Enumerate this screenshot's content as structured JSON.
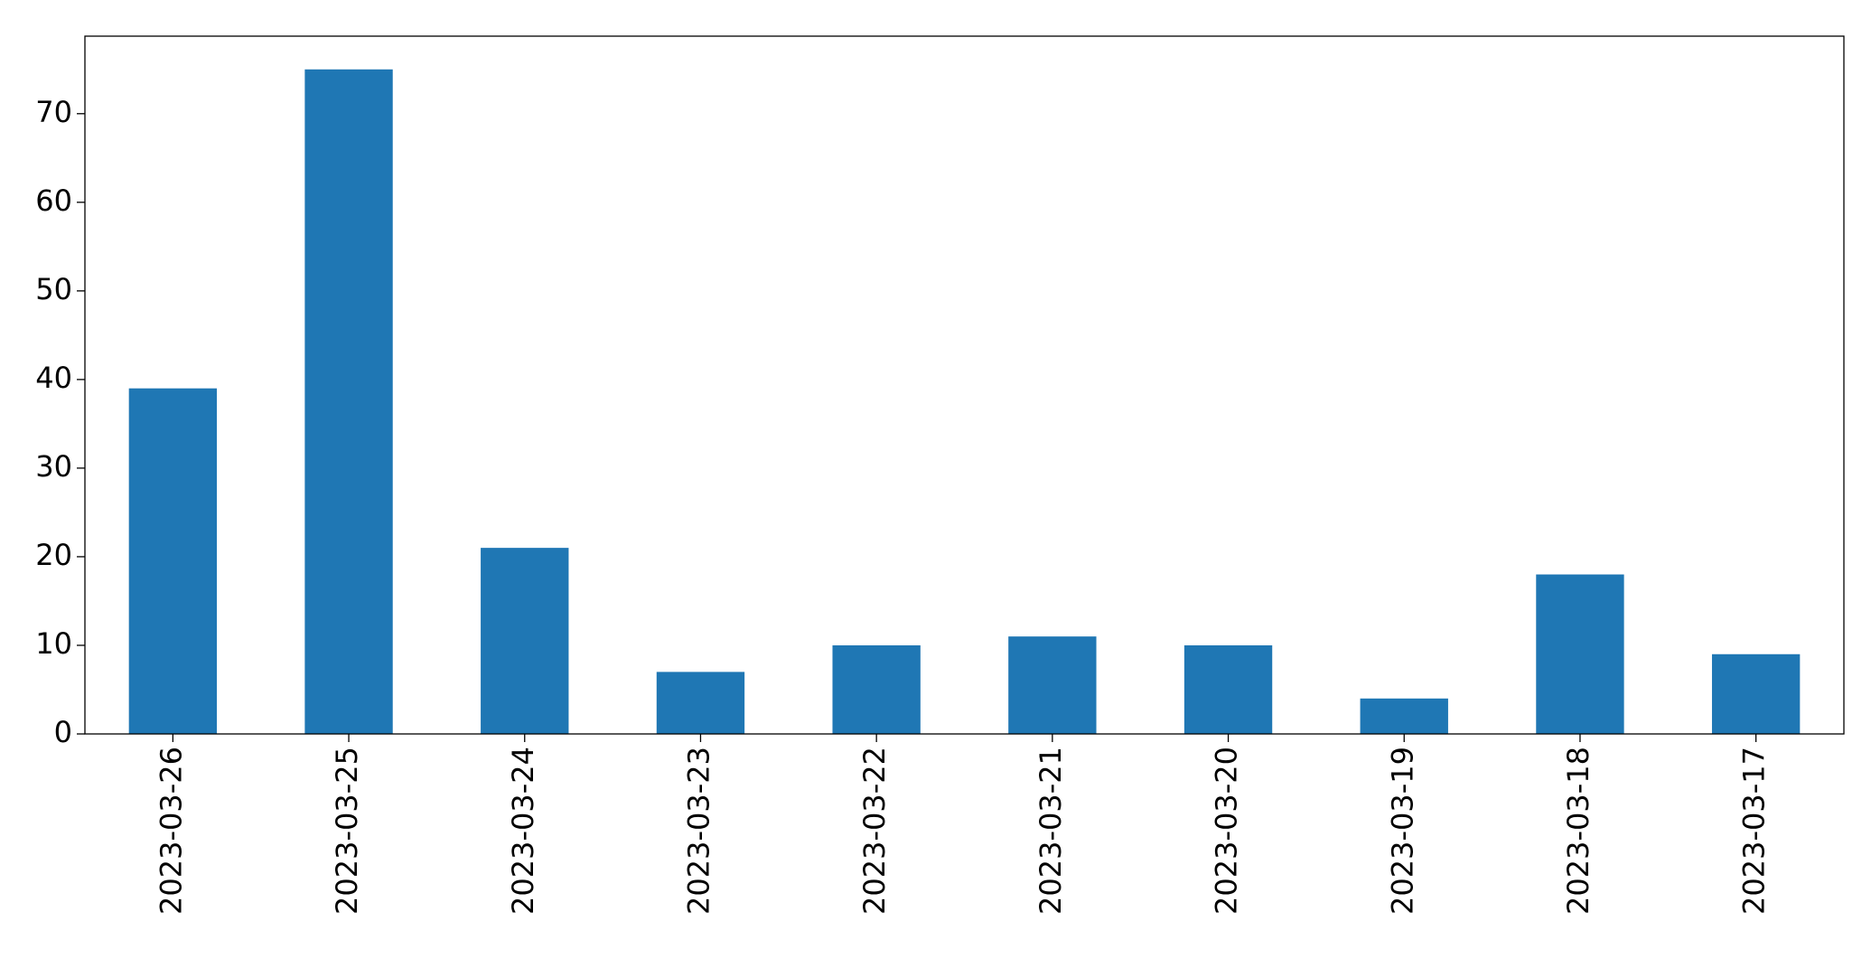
{
  "chart_data": {
    "type": "bar",
    "categories": [
      "2023-03-26",
      "2023-03-25",
      "2023-03-24",
      "2023-03-23",
      "2023-03-22",
      "2023-03-21",
      "2023-03-20",
      "2023-03-19",
      "2023-03-18",
      "2023-03-17"
    ],
    "values": [
      39,
      75,
      21,
      7,
      10,
      11,
      10,
      4,
      18,
      9
    ],
    "color": "#1f77b4",
    "ylim": [
      0,
      78.75
    ],
    "yticks": [
      0,
      10,
      20,
      30,
      40,
      50,
      60,
      70
    ],
    "grid": false
  }
}
